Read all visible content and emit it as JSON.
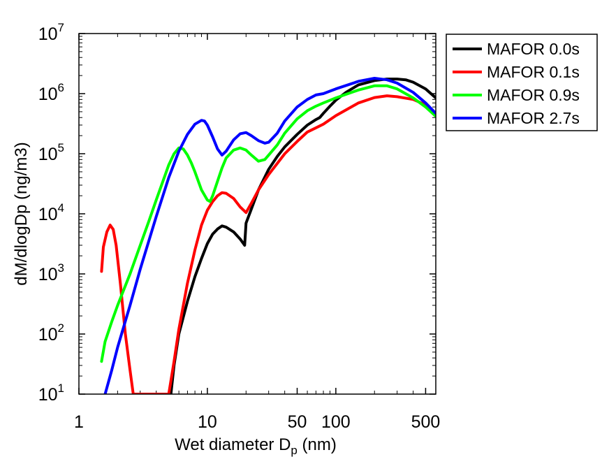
{
  "chart_data": {
    "type": "line",
    "title": "",
    "xlabel": {
      "main": "Wet diameter D",
      "sub": "p",
      "unit": " (nm)"
    },
    "ylabel": "dM/dlogDp (ng/m3)",
    "xscale": "log",
    "yscale": "log",
    "xlim": [
      1,
      600
    ],
    "ylim": [
      10,
      10000000
    ],
    "xticks": [
      {
        "value": 1,
        "label": "1"
      },
      {
        "value": 10,
        "label": "10"
      },
      {
        "value": 50,
        "label": "50"
      },
      {
        "value": 100,
        "label": "100"
      },
      {
        "value": 500,
        "label": "500"
      }
    ],
    "yticks": [
      {
        "value": 10,
        "base": "10",
        "exp": "1"
      },
      {
        "value": 100,
        "base": "10",
        "exp": "2"
      },
      {
        "value": 1000,
        "base": "10",
        "exp": "3"
      },
      {
        "value": 10000,
        "base": "10",
        "exp": "4"
      },
      {
        "value": 100000,
        "base": "10",
        "exp": "5"
      },
      {
        "value": 1000000,
        "base": "10",
        "exp": "6"
      },
      {
        "value": 10000000,
        "base": "10",
        "exp": "7"
      }
    ],
    "grid": false,
    "legend_position": "outside-top-right",
    "series": [
      {
        "name": "MAFOR 0.0s",
        "color": "#000000",
        "x": [
          5.2,
          5.5,
          6.0,
          7.0,
          8.0,
          9.0,
          10.0,
          11.0,
          12.0,
          13.0,
          14.0,
          16.0,
          18.0,
          19.5,
          20.0,
          22.0,
          25.0,
          30.0,
          35.0,
          40.0,
          50.0,
          60.0,
          70.0,
          75.0,
          80.0,
          90.0,
          100.0,
          120.0,
          150.0,
          200.0,
          250.0,
          300.0,
          350.0,
          400.0,
          500.0,
          600.0
        ],
        "y": [
          10,
          30,
          100,
          350,
          900,
          1800,
          3200,
          4600,
          5600,
          6300,
          6000,
          5000,
          3800,
          3000,
          7000,
          12000,
          25000,
          55000,
          90000,
          130000,
          210000,
          300000,
          370000,
          400000,
          470000,
          620000,
          780000,
          1050000,
          1400000,
          1650000,
          1750000,
          1750000,
          1700000,
          1550000,
          1200000,
          850000
        ]
      },
      {
        "name": "MAFOR 0.1s",
        "color": "#ff0000",
        "x": [
          1.5,
          1.55,
          1.65,
          1.75,
          1.85,
          1.95,
          2.1,
          2.3,
          2.5,
          2.65,
          5.0,
          5.5,
          6.0,
          7.0,
          8.0,
          9.0,
          10.0,
          11.0,
          12.0,
          13.0,
          14.0,
          16.0,
          18.0,
          20.0,
          22.0,
          25.0,
          30.0,
          40.0,
          50.0,
          60.0,
          70.0,
          80.0,
          100.0,
          150.0,
          200.0,
          250.0,
          300.0,
          400.0,
          500.0,
          600.0
        ],
        "y": [
          1100,
          2800,
          5000,
          6500,
          5500,
          3000,
          700,
          100,
          25,
          10,
          10,
          35,
          120,
          700,
          2500,
          6500,
          11500,
          16000,
          20000,
          22500,
          22000,
          18000,
          13000,
          10500,
          15000,
          25000,
          45000,
          100000,
          160000,
          230000,
          270000,
          310000,
          430000,
          700000,
          860000,
          920000,
          890000,
          800000,
          650000,
          470000
        ]
      },
      {
        "name": "MAFOR 0.9s",
        "color": "#00ff00",
        "x": [
          1.5,
          1.6,
          1.8,
          2.0,
          2.5,
          3.0,
          3.5,
          4.0,
          5.0,
          5.5,
          6.0,
          6.5,
          7.0,
          7.5,
          8.0,
          9.0,
          10.0,
          10.5,
          11.0,
          12.0,
          13.0,
          14.0,
          16.0,
          18.0,
          20.0,
          22.0,
          25.0,
          28.0,
          30.0,
          35.0,
          40.0,
          50.0,
          60.0,
          70.0,
          80.0,
          100.0,
          150.0,
          200.0,
          250.0,
          300.0,
          400.0,
          500.0,
          600.0
        ],
        "y": [
          35,
          75,
          160,
          300,
          1000,
          3000,
          7500,
          17000,
          65000,
          100000,
          125000,
          120000,
          95000,
          70000,
          50000,
          25000,
          17000,
          16000,
          20000,
          35000,
          58000,
          85000,
          115000,
          125000,
          115000,
          95000,
          75000,
          80000,
          95000,
          140000,
          220000,
          380000,
          520000,
          620000,
          700000,
          850000,
          1150000,
          1350000,
          1350000,
          1200000,
          850000,
          600000,
          420000
        ]
      },
      {
        "name": "MAFOR 2.7s",
        "color": "#0000ff",
        "x": [
          1.6,
          1.8,
          2.0,
          2.5,
          3.0,
          4.0,
          5.0,
          6.0,
          7.0,
          8.0,
          9.0,
          9.5,
          10.0,
          11.0,
          12.0,
          13.0,
          14.0,
          16.0,
          18.0,
          20.0,
          22.0,
          25.0,
          28.0,
          30.0,
          35.0,
          40.0,
          50.0,
          60.0,
          70.0,
          80.0,
          100.0,
          150.0,
          200.0,
          250.0,
          300.0,
          400.0,
          500.0,
          600.0
        ],
        "y": [
          10,
          25,
          60,
          300,
          1200,
          9000,
          40000,
          110000,
          210000,
          310000,
          360000,
          350000,
          300000,
          190000,
          120000,
          95000,
          110000,
          170000,
          215000,
          225000,
          200000,
          165000,
          150000,
          155000,
          220000,
          350000,
          600000,
          800000,
          950000,
          1000000,
          1200000,
          1600000,
          1800000,
          1700000,
          1500000,
          1050000,
          700000,
          470000
        ]
      }
    ]
  }
}
